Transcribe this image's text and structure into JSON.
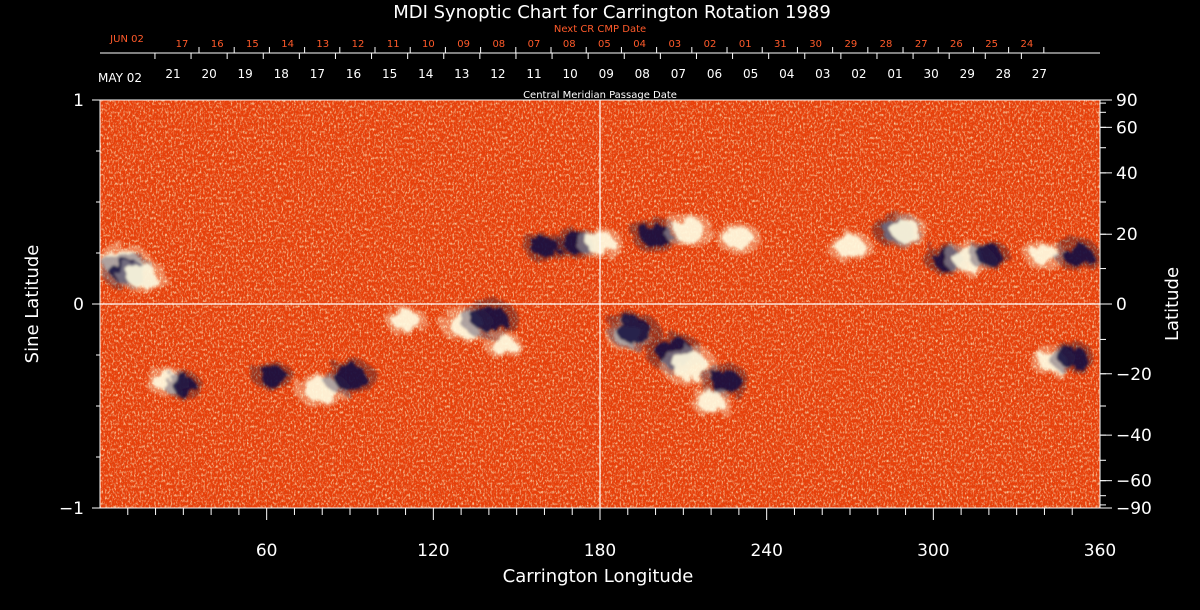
{
  "chart_data": {
    "type": "heatmap",
    "title": "MDI Synoptic Chart for Carrington Rotation 1989",
    "xlabel": "Carrington Longitude",
    "ylabel_left": "Sine Latitude",
    "ylabel_right": "Latitude",
    "xlim": [
      0,
      360
    ],
    "ylim_sine": [
      -1,
      1
    ],
    "x_ticks": [
      60,
      120,
      180,
      240,
      300,
      360
    ],
    "y_ticks_sine": [
      {
        "value": 1,
        "label": "1"
      },
      {
        "value": 0,
        "label": "0"
      },
      {
        "value": -1,
        "label": "−1"
      }
    ],
    "y_ticks_latitude_deg": [
      {
        "value": 90,
        "label": "90"
      },
      {
        "value": 60,
        "label": "60"
      },
      {
        "value": 40,
        "label": "40"
      },
      {
        "value": 20,
        "label": "20"
      },
      {
        "value": 0,
        "label": "0"
      },
      {
        "value": -20,
        "label": "−20"
      },
      {
        "value": -40,
        "label": "−40"
      },
      {
        "value": -60,
        "label": "−60"
      },
      {
        "value": -90,
        "label": "−90"
      }
    ],
    "cmp_axis": {
      "label": "Central Meridian Passage Date",
      "start_label": "MAY 02",
      "dates": [
        "21",
        "20",
        "19",
        "18",
        "17",
        "16",
        "15",
        "14",
        "13",
        "12",
        "11",
        "10",
        "09",
        "08",
        "07",
        "06",
        "05",
        "04",
        "03",
        "02",
        "01",
        "30",
        "29",
        "28",
        "27"
      ]
    },
    "next_cmp_axis": {
      "label": "Next CR CMP Date",
      "start_label": "JUN 02",
      "dates": [
        "17",
        "16",
        "15",
        "14",
        "13",
        "12",
        "11",
        "10",
        "09",
        "08",
        "07",
        "08",
        "05",
        "04",
        "03",
        "02",
        "01",
        "31",
        "30",
        "29",
        "28",
        "27",
        "26",
        "25",
        "24"
      ]
    },
    "colors": {
      "background": "#000000",
      "field_base": "#e8400a",
      "positive_polarity": "#fffbe0",
      "negative_polarity": "#1a1240",
      "grid_line": "#ffffff",
      "next_cmp_text": "#ff5a2a"
    },
    "active_regions": [
      {
        "lon": 8,
        "lat_sine": 0.2,
        "polarity": "positive",
        "strength": 1.0
      },
      {
        "lon": 10,
        "lat_sine": 0.16,
        "polarity": "negative",
        "strength": 0.9
      },
      {
        "lon": 15,
        "lat_sine": 0.14,
        "polarity": "positive",
        "strength": 0.8
      },
      {
        "lon": 24,
        "lat_sine": -0.38,
        "polarity": "positive",
        "strength": 0.6
      },
      {
        "lon": 30,
        "lat_sine": -0.4,
        "polarity": "negative",
        "strength": 0.5
      },
      {
        "lon": 62,
        "lat_sine": -0.35,
        "polarity": "negative",
        "strength": 0.6
      },
      {
        "lon": 80,
        "lat_sine": -0.42,
        "polarity": "positive",
        "strength": 0.9
      },
      {
        "lon": 90,
        "lat_sine": -0.36,
        "polarity": "negative",
        "strength": 0.9
      },
      {
        "lon": 110,
        "lat_sine": -0.08,
        "polarity": "positive",
        "strength": 0.6
      },
      {
        "lon": 132,
        "lat_sine": -0.1,
        "polarity": "positive",
        "strength": 0.9
      },
      {
        "lon": 140,
        "lat_sine": -0.07,
        "polarity": "negative",
        "strength": 1.0
      },
      {
        "lon": 145,
        "lat_sine": -0.2,
        "polarity": "positive",
        "strength": 0.5
      },
      {
        "lon": 160,
        "lat_sine": 0.28,
        "polarity": "negative",
        "strength": 0.6
      },
      {
        "lon": 172,
        "lat_sine": 0.3,
        "polarity": "negative",
        "strength": 0.7
      },
      {
        "lon": 180,
        "lat_sine": 0.3,
        "polarity": "positive",
        "strength": 0.7
      },
      {
        "lon": 190,
        "lat_sine": -0.15,
        "polarity": "positive",
        "strength": 0.7
      },
      {
        "lon": 192,
        "lat_sine": -0.13,
        "polarity": "negative",
        "strength": 0.9
      },
      {
        "lon": 200,
        "lat_sine": 0.34,
        "polarity": "negative",
        "strength": 0.8
      },
      {
        "lon": 212,
        "lat_sine": 0.36,
        "polarity": "positive",
        "strength": 0.8
      },
      {
        "lon": 230,
        "lat_sine": 0.32,
        "polarity": "positive",
        "strength": 0.7
      },
      {
        "lon": 207,
        "lat_sine": -0.24,
        "polarity": "negative",
        "strength": 1.0
      },
      {
        "lon": 212,
        "lat_sine": -0.3,
        "polarity": "positive",
        "strength": 1.0
      },
      {
        "lon": 225,
        "lat_sine": -0.38,
        "polarity": "negative",
        "strength": 0.8
      },
      {
        "lon": 220,
        "lat_sine": -0.48,
        "polarity": "positive",
        "strength": 0.6
      },
      {
        "lon": 270,
        "lat_sine": 0.28,
        "polarity": "positive",
        "strength": 0.7
      },
      {
        "lon": 287,
        "lat_sine": 0.36,
        "polarity": "negative",
        "strength": 0.8
      },
      {
        "lon": 290,
        "lat_sine": 0.36,
        "polarity": "positive",
        "strength": 0.7
      },
      {
        "lon": 305,
        "lat_sine": 0.22,
        "polarity": "negative",
        "strength": 0.7
      },
      {
        "lon": 313,
        "lat_sine": 0.22,
        "polarity": "positive",
        "strength": 0.8
      },
      {
        "lon": 320,
        "lat_sine": 0.24,
        "polarity": "negative",
        "strength": 0.6
      },
      {
        "lon": 340,
        "lat_sine": 0.24,
        "polarity": "positive",
        "strength": 0.6
      },
      {
        "lon": 352,
        "lat_sine": 0.24,
        "polarity": "negative",
        "strength": 0.7
      },
      {
        "lon": 343,
        "lat_sine": -0.28,
        "polarity": "positive",
        "strength": 0.7
      },
      {
        "lon": 350,
        "lat_sine": -0.26,
        "polarity": "negative",
        "strength": 0.7
      }
    ]
  }
}
